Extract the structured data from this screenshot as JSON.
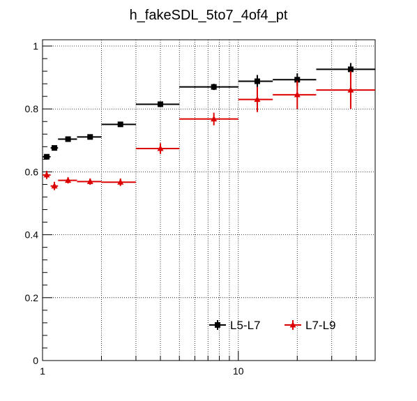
{
  "chart_data": {
    "type": "scatter",
    "title": "h_fakeSDL_5to7_4of4_pt",
    "xlabel": "",
    "ylabel": "",
    "x_scale": "log",
    "xlim": [
      1,
      50
    ],
    "ylim": [
      0,
      1.02
    ],
    "grid": true,
    "x_tick_labels": [
      "1",
      "10"
    ],
    "y_tick_labels": [
      "0",
      "0.2",
      "0.4",
      "0.6",
      "0.8",
      "1"
    ],
    "legend_position": "bottom-right",
    "series": [
      {
        "name": "L5-L7",
        "color": "#000000",
        "marker": "square",
        "points": [
          {
            "x": 1.05,
            "xlo": 1.0,
            "xhi": 1.1,
            "y": 0.648,
            "yerr": 0.006
          },
          {
            "x": 1.15,
            "xlo": 1.1,
            "xhi": 1.2,
            "y": 0.676,
            "yerr": 0.006
          },
          {
            "x": 1.35,
            "xlo": 1.2,
            "xhi": 1.5,
            "y": 0.704,
            "yerr": 0.005
          },
          {
            "x": 1.75,
            "xlo": 1.5,
            "xhi": 2.0,
            "y": 0.711,
            "yerr": 0.005
          },
          {
            "x": 2.5,
            "xlo": 2.0,
            "xhi": 3.0,
            "y": 0.751,
            "yerr": 0.006
          },
          {
            "x": 4.0,
            "xlo": 3.0,
            "xhi": 5.0,
            "y": 0.815,
            "yerr": 0.008
          },
          {
            "x": 7.5,
            "xlo": 5.0,
            "xhi": 10.0,
            "y": 0.87,
            "yerr": 0.01
          },
          {
            "x": 12.5,
            "xlo": 10.0,
            "xhi": 15.0,
            "y": 0.888,
            "yerr": 0.02
          },
          {
            "x": 20.0,
            "xlo": 15.0,
            "xhi": 25.0,
            "y": 0.893,
            "yerr": 0.02
          },
          {
            "x": 37.5,
            "xlo": 25.0,
            "xhi": 50.0,
            "y": 0.926,
            "yerr": 0.02
          }
        ]
      },
      {
        "name": "L7-L9",
        "color": "#dd0000",
        "marker": "triangle",
        "points": [
          {
            "x": 1.05,
            "xlo": 1.0,
            "xhi": 1.1,
            "y": 0.59,
            "yerr": 0.013
          },
          {
            "x": 1.15,
            "xlo": 1.1,
            "xhi": 1.2,
            "y": 0.555,
            "yerr": 0.013
          },
          {
            "x": 1.35,
            "xlo": 1.2,
            "xhi": 1.5,
            "y": 0.573,
            "yerr": 0.01
          },
          {
            "x": 1.75,
            "xlo": 1.5,
            "xhi": 2.0,
            "y": 0.569,
            "yerr": 0.01
          },
          {
            "x": 2.5,
            "xlo": 2.0,
            "xhi": 3.0,
            "y": 0.567,
            "yerr": 0.012
          },
          {
            "x": 4.0,
            "xlo": 3.0,
            "xhi": 5.0,
            "y": 0.674,
            "yerr": 0.017
          },
          {
            "x": 7.5,
            "xlo": 5.0,
            "xhi": 10.0,
            "y": 0.768,
            "yerr": 0.02
          },
          {
            "x": 12.5,
            "xlo": 10.0,
            "xhi": 15.0,
            "y": 0.83,
            "yerr": 0.04
          },
          {
            "x": 20.0,
            "xlo": 15.0,
            "xhi": 25.0,
            "y": 0.845,
            "yerr": 0.045
          },
          {
            "x": 37.5,
            "xlo": 25.0,
            "xhi": 50.0,
            "y": 0.86,
            "yerr": 0.06
          }
        ]
      }
    ]
  }
}
